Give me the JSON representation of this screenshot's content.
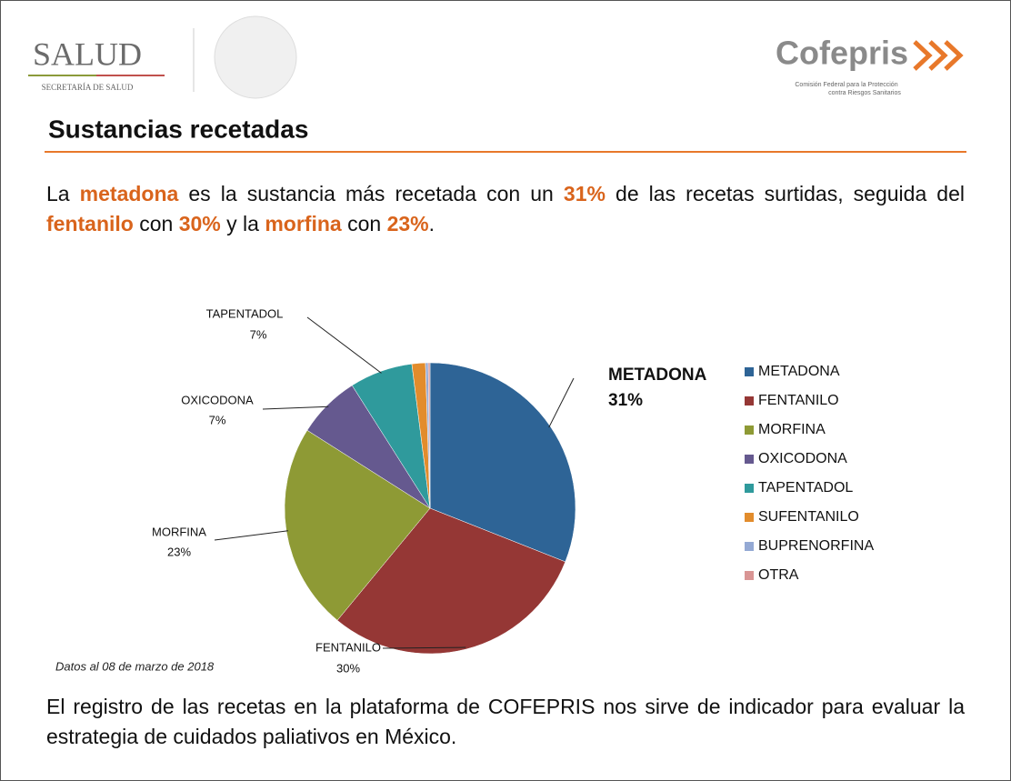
{
  "header": {
    "left_logo": "SALUD",
    "left_logo_sub": "SECRETARÍA DE SALUD",
    "right_logo": "Cofepris",
    "right_logo_sub_1": "Comisión Federal para la Protección",
    "right_logo_sub_2": "contra Riesgos Sanitarios"
  },
  "title": "Sustancias recetadas",
  "intro": [
    {
      "text": "La ",
      "emphasis": false
    },
    {
      "text": "metadona",
      "emphasis": true
    },
    {
      "text": " es la sustancia más recetada con un ",
      "emphasis": false
    },
    {
      "text": "31%",
      "emphasis": true
    },
    {
      "text": " de las recetas surtidas, seguida del ",
      "emphasis": false
    },
    {
      "text": "fentanilo",
      "emphasis": true
    },
    {
      "text": " con ",
      "emphasis": false
    },
    {
      "text": "30%",
      "emphasis": true
    },
    {
      "text": " y la ",
      "emphasis": false
    },
    {
      "text": "morfina",
      "emphasis": true
    },
    {
      "text": " con ",
      "emphasis": false
    },
    {
      "text": "23%",
      "emphasis": true
    },
    {
      "text": ".",
      "emphasis": false
    }
  ],
  "chart_data": {
    "type": "pie",
    "categories": [
      "METADONA",
      "FENTANILO",
      "MORFINA",
      "OXICODONA",
      "TAPENTADOL",
      "SUFENTANILO",
      "BUPRENORFINA",
      "OTRA"
    ],
    "values": [
      31,
      30,
      23,
      7,
      7,
      1.5,
      0.3,
      0.2
    ],
    "value_labels": [
      "31%",
      "30%",
      "23%",
      "7%",
      "7%",
      null,
      null,
      null
    ],
    "colors": [
      "#2e6496",
      "#953735",
      "#8e9a35",
      "#65598f",
      "#2f9a9c",
      "#e28c2c",
      "#94a9d4",
      "#d99594"
    ],
    "legend": "right",
    "footnote": "Datos al 08 de marzo de 2018"
  },
  "conclusion": "El registro de las recetas en la plataforma de COFEPRIS nos sirve de indicador para evaluar la estrategia de cuidados paliativos en México."
}
